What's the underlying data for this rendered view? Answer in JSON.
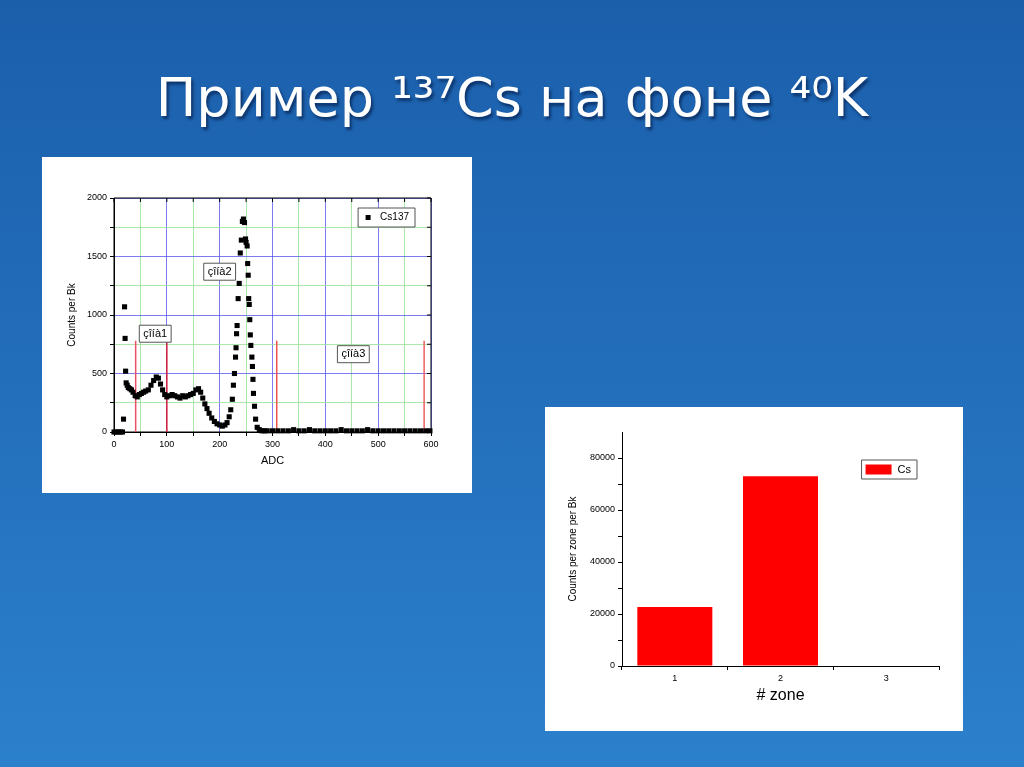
{
  "chart_data": [
    {
      "type": "scatter",
      "title": "Пример ¹³⁷Cs на фоне ⁴⁰K",
      "xlabel": "ADC",
      "ylabel": "Counts per Bk",
      "x": [
        0,
        4,
        8,
        12,
        16,
        18,
        20,
        21,
        22,
        23,
        25,
        27,
        30,
        33,
        36,
        40,
        44,
        48,
        52,
        56,
        60,
        65,
        70,
        75,
        80,
        84,
        88,
        92,
        96,
        100,
        105,
        110,
        115,
        120,
        125,
        130,
        135,
        140,
        145,
        150,
        155,
        160,
        164,
        168,
        172,
        176,
        180,
        185,
        190,
        195,
        200,
        205,
        210,
        214,
        218,
        221,
        224,
        226,
        228,
        230,
        231,
        232,
        233,
        235,
        237,
        239,
        241,
        243,
        245,
        247,
        249,
        250,
        252,
        253,
        254,
        255,
        256,
        257,
        258,
        259,
        261,
        262,
        263,
        264,
        266,
        268,
        271,
        275,
        280,
        285,
        290,
        300,
        310,
        320,
        330,
        340,
        350,
        360,
        370,
        380,
        390,
        400,
        410,
        420,
        430,
        440,
        450,
        460,
        470,
        480,
        490,
        500,
        510,
        520,
        530,
        540,
        550,
        560,
        570,
        580,
        590,
        598
      ],
      "series": [
        {
          "name": "Cs137",
          "color": "#000000",
          "values": [
            0,
            0,
            0,
            0,
            0,
            110,
            1070,
            800,
            520,
            420,
            400,
            380,
            370,
            360,
            340,
            310,
            300,
            320,
            330,
            340,
            350,
            360,
            400,
            440,
            470,
            460,
            410,
            360,
            320,
            300,
            310,
            320,
            310,
            300,
            290,
            310,
            300,
            310,
            320,
            330,
            360,
            370,
            340,
            290,
            240,
            200,
            160,
            120,
            90,
            70,
            60,
            50,
            60,
            80,
            130,
            190,
            280,
            400,
            500,
            640,
            720,
            840,
            910,
            1140,
            1270,
            1530,
            1640,
            1800,
            1820,
            1790,
            1650,
            1620,
            1590,
            1440,
            1340,
            1140,
            1090,
            960,
            830,
            740,
            640,
            560,
            450,
            330,
            220,
            110,
            40,
            20,
            10,
            10,
            10,
            10,
            10,
            10,
            10,
            20,
            10,
            10,
            20,
            10,
            10,
            10,
            10,
            10,
            20,
            10,
            10,
            10,
            10,
            20,
            10,
            10,
            10,
            10,
            10,
            10,
            10,
            10,
            10,
            10,
            10,
            10
          ]
        }
      ],
      "xlim": [
        0,
        600
      ],
      "ylim": [
        0,
        2000
      ],
      "xticks": [
        0,
        {
          "value": 50,
          "label": null
        },
        100,
        {
          "value": 150,
          "label": null
        },
        200,
        {
          "value": 250,
          "label": null
        },
        300,
        {
          "value": 350,
          "label": null
        },
        400,
        {
          "value": 450,
          "label": null
        },
        500,
        {
          "value": 550,
          "label": null
        },
        600
      ],
      "yticks": [
        0,
        {
          "value": 250,
          "label": null
        },
        500,
        {
          "value": 750,
          "label": null
        },
        1000,
        {
          "value": 1250,
          "label": null
        },
        1500,
        {
          "value": 1750,
          "label": null
        },
        2000
      ],
      "grid": true,
      "legend": "top right",
      "marker": "square",
      "ref_lines": [
        {
          "axis": "x",
          "value": 41,
          "color": "#e8506a"
        },
        {
          "axis": "x",
          "value": 100,
          "color": "#d0203c"
        },
        {
          "axis": "x",
          "value": 308,
          "color": "#f05050"
        },
        {
          "axis": "x",
          "value": 587,
          "color": "#f06060"
        }
      ],
      "annotations": [
        {
          "text": "çîíà1",
          "x": 78,
          "y": 840
        },
        {
          "text": "çîíà2",
          "x": 200,
          "y": 1370
        },
        {
          "text": "çîíà3",
          "x": 453,
          "y": 665
        }
      ]
    },
    {
      "type": "bar",
      "xlabel": "# zone",
      "ylabel": "Counts per zone per Bk",
      "categories": [
        "1",
        "2",
        "3"
      ],
      "series": [
        {
          "name": "Cs",
          "color": "#ff0000",
          "values": [
            22700,
            73000,
            null
          ]
        }
      ],
      "ylim": [
        0,
        90000
      ],
      "yticks": [
        0,
        {
          "value": 10000,
          "label": null
        },
        20000,
        {
          "value": 30000,
          "label": null
        },
        40000,
        {
          "value": 50000,
          "label": null
        },
        60000,
        {
          "value": 70000,
          "label": null
        },
        80000
      ],
      "legend": "top right"
    }
  ]
}
